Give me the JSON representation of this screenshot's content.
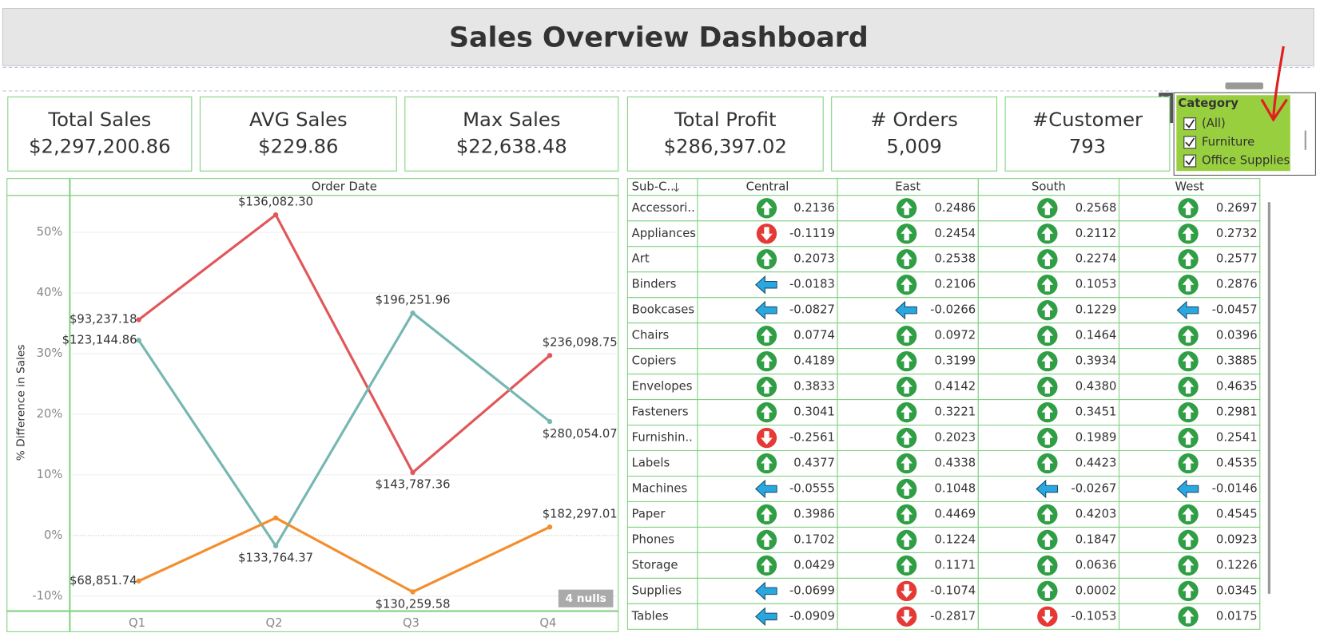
{
  "header": {
    "title": "Sales Overview Dashboard"
  },
  "kpis": [
    {
      "label": "Total Sales",
      "value": "$2,297,200.86"
    },
    {
      "label": "AVG Sales",
      "value": "$229.86"
    },
    {
      "label": "Max Sales",
      "value": "$22,638.48"
    },
    {
      "label": "Total Profit",
      "value": "$286,397.02"
    },
    {
      "label": "# Orders",
      "value": "5,009"
    },
    {
      "label": "#Customer",
      "value": "793"
    }
  ],
  "filter": {
    "title": "Category",
    "options": [
      "(All)",
      "Furniture",
      "Office Supplies"
    ]
  },
  "chart_data": {
    "type": "line",
    "header": "Order Date",
    "y_label": "% Difference in Sales",
    "categories": [
      "Q1",
      "Q2",
      "Q3",
      "Q4"
    ],
    "series": [
      {
        "color": "#e15759",
        "values": [
          35.6,
          52.9,
          10.4,
          29.7
        ],
        "value_labels": [
          "$93,237.18",
          "$136,082.30",
          "$143,787.36",
          "$236,098.75"
        ]
      },
      {
        "color": "#76b7b2",
        "values": [
          32.2,
          -1.7,
          36.7,
          18.8
        ],
        "value_labels": [
          "$123,144.86",
          "$133,764.37",
          "$196,251.96",
          "$280,054.07"
        ]
      },
      {
        "color": "#f28e2b",
        "values": [
          -7.5,
          2.9,
          -9.3,
          1.4
        ],
        "value_labels": [
          "$68,851.74",
          null,
          "$130,259.58",
          "$182,297.01"
        ]
      }
    ],
    "ylim": [
      -12.4,
      56.1
    ],
    "yticks": [
      {
        "value": -10,
        "label": "-10%"
      },
      {
        "value": 0,
        "label": "0%"
      },
      {
        "value": 10,
        "label": "10%"
      },
      {
        "value": 20,
        "label": "20%"
      },
      {
        "value": 30,
        "label": "30%"
      },
      {
        "value": 40,
        "label": "40%"
      },
      {
        "value": 50,
        "label": "50%"
      }
    ],
    "grid": true,
    "null_note": "4 nulls"
  },
  "table": {
    "header": [
      "Sub-C..",
      "Central",
      "East",
      "South",
      "West"
    ],
    "rows": [
      [
        "Accessori..",
        "0.2136",
        "0.2486",
        "0.2568",
        "0.2697"
      ],
      [
        "Appliances",
        "-0.1119",
        "0.2454",
        "0.2112",
        "0.2732"
      ],
      [
        "Art",
        "0.2073",
        "0.2538",
        "0.2274",
        "0.2577"
      ],
      [
        "Binders",
        "-0.0183",
        "0.2106",
        "0.1053",
        "0.2876"
      ],
      [
        "Bookcases",
        "-0.0827",
        "-0.0266",
        "0.1229",
        "-0.0457"
      ],
      [
        "Chairs",
        "0.0774",
        "0.0972",
        "0.1464",
        "0.0396"
      ],
      [
        "Copiers",
        "0.4189",
        "0.3199",
        "0.3934",
        "0.3885"
      ],
      [
        "Envelopes",
        "0.3833",
        "0.4142",
        "0.4380",
        "0.4635"
      ],
      [
        "Fasteners",
        "0.3041",
        "0.3221",
        "0.3451",
        "0.2981"
      ],
      [
        "Furnishin..",
        "-0.2561",
        "0.2023",
        "0.1989",
        "0.2541"
      ],
      [
        "Labels",
        "0.4377",
        "0.4338",
        "0.4423",
        "0.4535"
      ],
      [
        "Machines",
        "-0.0555",
        "0.1048",
        "-0.0267",
        "-0.0146"
      ],
      [
        "Paper",
        "0.3986",
        "0.4469",
        "0.4203",
        "0.4545"
      ],
      [
        "Phones",
        "0.1702",
        "0.1224",
        "0.1847",
        "0.0923"
      ],
      [
        "Storage",
        "0.0429",
        "0.1171",
        "0.0636",
        "0.1226"
      ],
      [
        "Supplies",
        "-0.0699",
        "-0.1074",
        "0.0002",
        "0.0345"
      ],
      [
        "Tables",
        "-0.0909",
        "-0.2817",
        "-0.1053",
        "0.0175"
      ]
    ]
  }
}
